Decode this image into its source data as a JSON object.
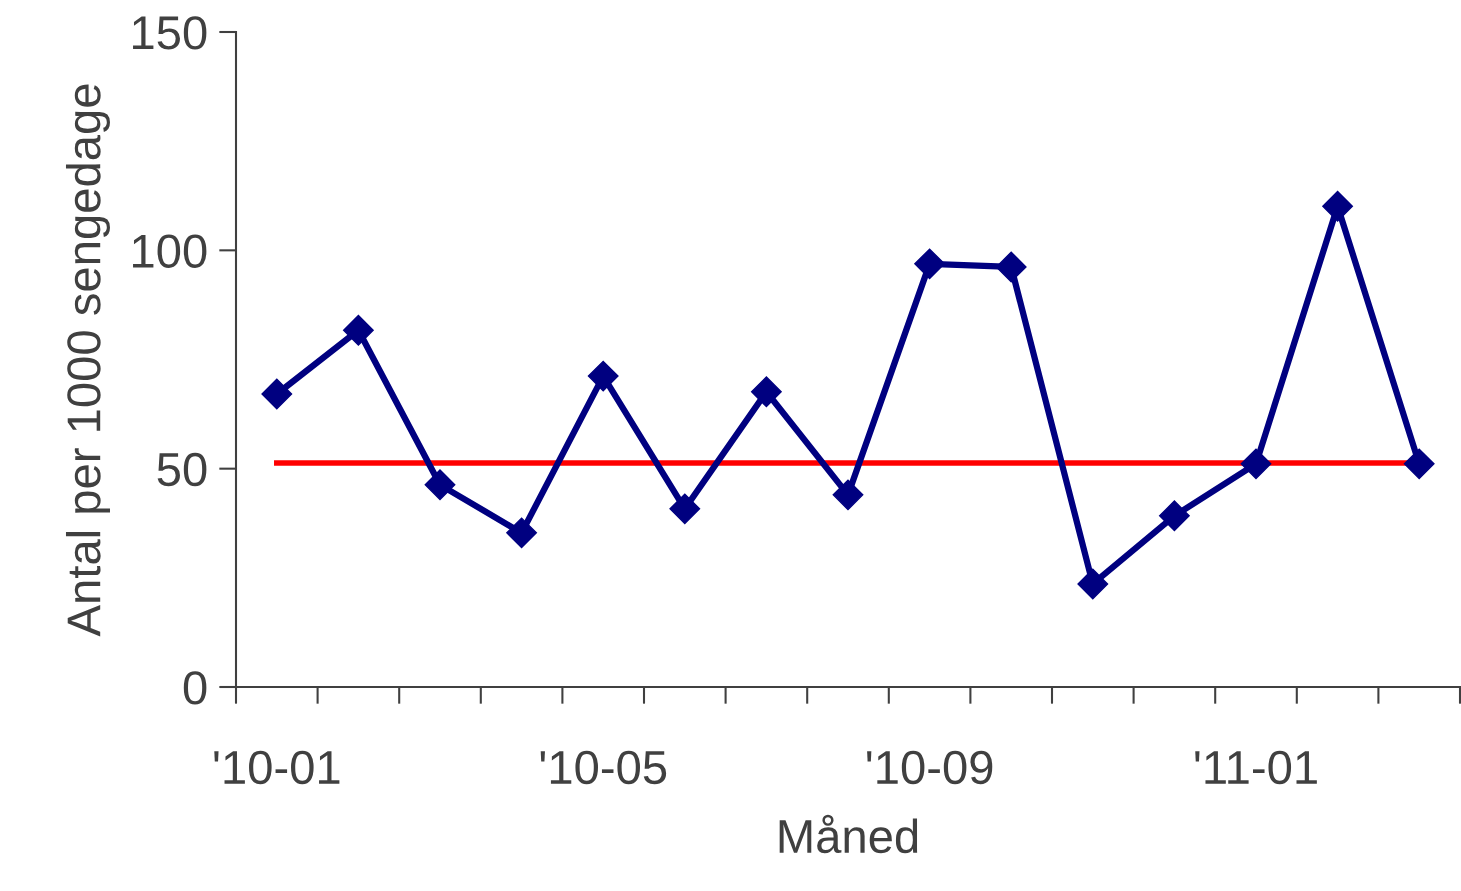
{
  "chart_data": {
    "type": "line",
    "xlabel": "Måned",
    "ylabel": "Antal per 1000 sengedage",
    "categories": [
      "'10-01",
      null,
      null,
      null,
      "'10-05",
      null,
      null,
      null,
      "'10-09",
      null,
      null,
      null,
      "'11-01",
      null,
      null
    ],
    "series": [
      {
        "color": "#000080",
        "values": [
          67.1,
          81.7,
          46.3,
          35.3,
          71.2,
          40.8,
          67.6,
          44.0,
          96.9,
          96.2,
          23.6,
          39.2,
          51.1,
          110.1,
          51.1
        ]
      }
    ],
    "ylim": [
      0,
      150
    ],
    "yticks": [
      0,
      50,
      100,
      150
    ],
    "marker": "diamond",
    "line_style": "solid",
    "grid": false,
    "legend": false,
    "ref_lines": [
      {
        "axis": "y",
        "value": 51.3,
        "color": "#ff0000",
        "line_style": "solid"
      }
    ]
  }
}
